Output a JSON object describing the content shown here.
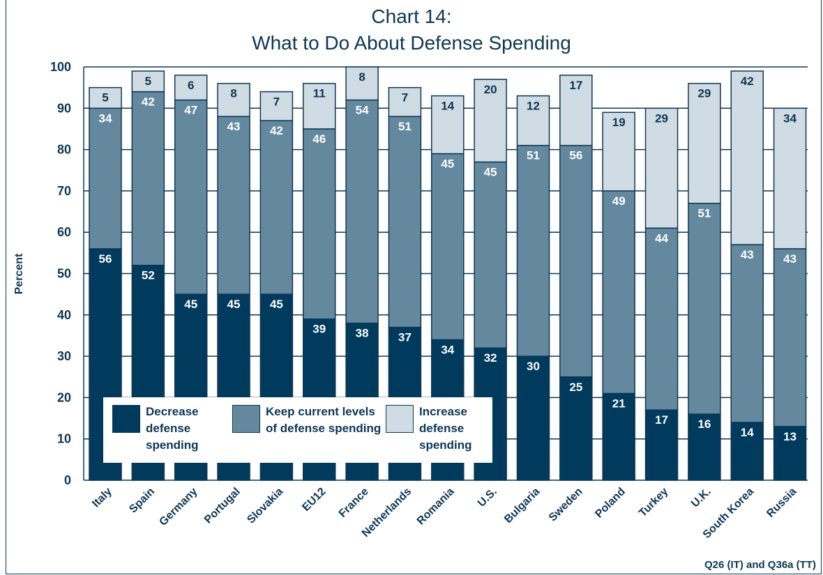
{
  "title_line_1": "Chart 14:",
  "title_line_2": "What to Do About Defense Spending",
  "ylabel": "Percent",
  "source_note": "Q26 (IT) and Q36a (TT)",
  "colors": {
    "decrease": "#003a5c",
    "keep": "#64899f",
    "increase": "#d0dce4",
    "text_dark": "#0e3654",
    "grid": "#0e3654"
  },
  "chart_data": {
    "type": "bar",
    "stacked": true,
    "categories": [
      "Italy",
      "Spain",
      "Germany",
      "Portugal",
      "Slovakia",
      "EU12",
      "France",
      "Netherlands",
      "Romania",
      "U.S.",
      "Bulgaria",
      "Sweden",
      "Poland",
      "Turkey",
      "U.K.",
      "South Korea",
      "Russia"
    ],
    "series": [
      {
        "name": "Decrease defense spending",
        "values": [
          56,
          52,
          45,
          45,
          45,
          39,
          38,
          37,
          34,
          32,
          30,
          25,
          21,
          17,
          16,
          14,
          13
        ]
      },
      {
        "name": "Keep current levels of defense spending",
        "values": [
          34,
          42,
          47,
          43,
          42,
          46,
          54,
          51,
          45,
          45,
          51,
          56,
          49,
          44,
          51,
          43,
          43
        ]
      },
      {
        "name": "Increase defense spending",
        "values": [
          5,
          5,
          6,
          8,
          7,
          11,
          8,
          7,
          14,
          20,
          12,
          17,
          19,
          29,
          29,
          42,
          34
        ]
      }
    ],
    "title": "Chart 14: What to Do About Defense Spending",
    "ylabel": "Percent",
    "ylim": [
      0,
      100
    ],
    "yticks": [
      0,
      10,
      20,
      30,
      40,
      50,
      60,
      70,
      80,
      90,
      100
    ],
    "grid": true,
    "legend_position": "bottom-left"
  },
  "legend": {
    "decrease_label": "Decrease defense spending",
    "keep_label": "Keep current levels of defense spending",
    "increase_label": "Increase defense spending"
  }
}
